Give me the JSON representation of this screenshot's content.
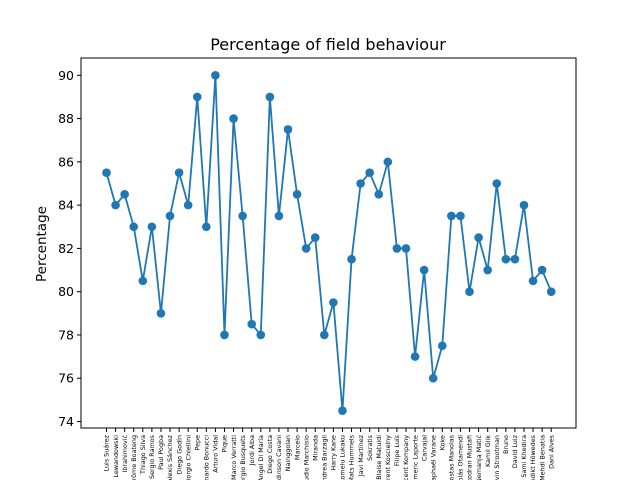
{
  "chart_data": {
    "type": "line",
    "title": "Percentage of field behaviour",
    "xlabel": "",
    "ylabel": "Percentage",
    "ylim": [
      73.7,
      90.8
    ],
    "yticks": [
      74,
      76,
      78,
      80,
      82,
      84,
      86,
      88,
      90
    ],
    "grid": false,
    "color": "#1f77b4",
    "categories": [
      "Luis Suárez",
      "Lewandowski",
      "Ibrahimović",
      "Jérôme Boateng",
      "Thiago Silva",
      "Sergio Ramos",
      "Paul Pogba",
      "Alexis Sánchez",
      "Diego Godín",
      "Giorgio Chiellini",
      "Pepe",
      "Leonardo Bonucci",
      "Arturo Vidal",
      "Pique",
      "Marco Verratti",
      "Sergio Busquets",
      "Jordi Alba",
      "Angel Di María",
      "Diego Costa",
      "Edinson Cavani",
      "Nainggolan",
      "Marcelo",
      "Claudio Marchisio",
      "Miranda",
      "Andrea Barzagli",
      "Harry Kane",
      "Romelu Lukaku",
      "Mats Hummels",
      "Javi Martínez",
      "Sokratis",
      "Blaise Matuidi",
      "Laurent Koscielny",
      "Filipe Luís",
      "Vincent Kompany",
      "Aymeric Laporte",
      "Carvajal",
      "Raphaël Varane",
      "Koke",
      "Kostas Manolas",
      "Nicolás Otamendi",
      "Shkodran Mustafi",
      "Nemanja Matić",
      "Kamil Glik",
      "Kevin Strootman",
      "Bruno",
      "David Luiz",
      "Sami Khedira",
      "Benedikt Höwedes",
      "Mehdi Benatia",
      "Dani Alves"
    ],
    "series": [
      {
        "values": [
          85.5,
          84.0,
          84.5,
          83.0,
          80.5,
          83.0,
          79.0,
          83.5,
          85.5,
          84.0,
          89.0,
          83.0,
          90.0,
          78.0,
          88.0,
          83.5,
          78.5,
          78.0,
          89.0,
          83.5,
          87.5,
          84.5,
          82.0,
          82.5,
          78.0,
          79.5,
          74.5,
          81.5,
          85.0,
          85.5,
          84.5,
          86.0,
          82.0,
          82.0,
          77.0,
          81.0,
          76.0,
          77.5,
          83.5,
          83.5,
          80.0,
          82.5,
          81.0,
          85.0,
          81.5,
          81.5,
          84.0,
          80.5,
          81.0,
          80.0
        ]
      }
    ]
  }
}
